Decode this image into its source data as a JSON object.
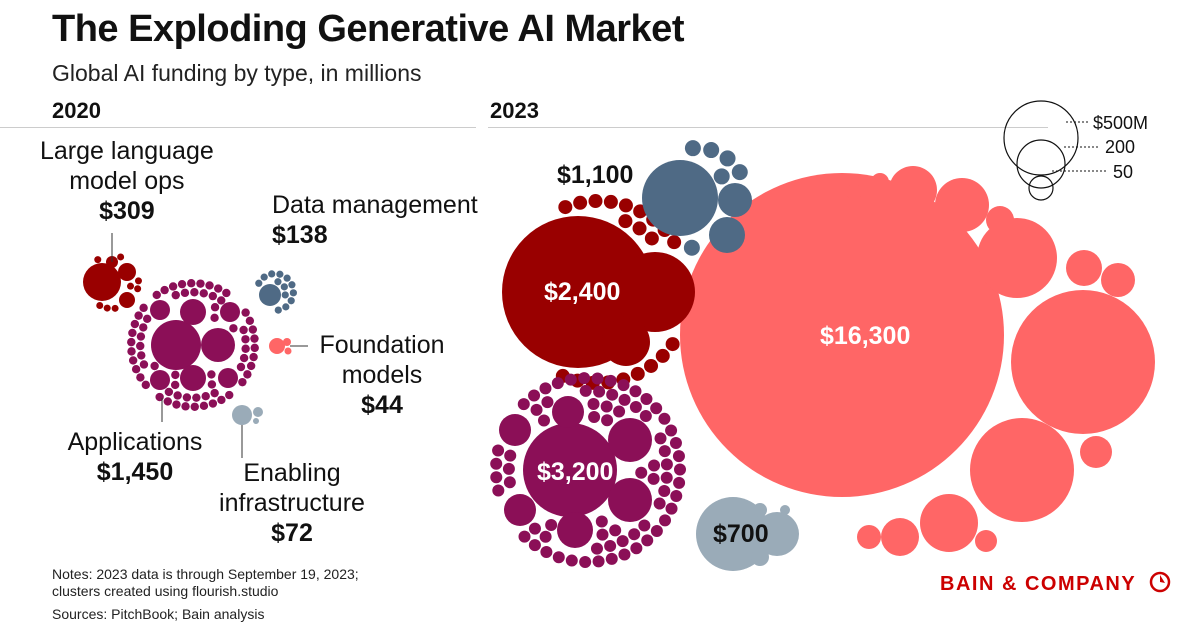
{
  "title": "The Exploding Generative AI Market",
  "subtitle": "Global AI funding by type, in millions",
  "notes": [
    "Notes: 2023 data is through September 19, 2023;",
    "clusters created using flourish.studio"
  ],
  "sources": "Sources: PitchBook; Bain analysis",
  "logo": "BAIN & COMPANY",
  "chart_data": {
    "type": "bubble-cluster",
    "unit": "millions USD",
    "panels": [
      "2020",
      "2023"
    ],
    "legend": {
      "title": "",
      "sizes": [
        "$500M",
        "200",
        "50"
      ]
    },
    "series": [
      {
        "name": "Large language model ops",
        "label_lines": [
          "Large language",
          "model ops"
        ],
        "color": "#990000",
        "values": {
          "2020": 309,
          "2023": 2400
        },
        "labels": {
          "2020": "$309",
          "2023": "$2,400"
        }
      },
      {
        "name": "Data management",
        "label_lines": [
          "Data management"
        ],
        "color": "#4f6a85",
        "values": {
          "2020": 138,
          "2023": 1100
        },
        "labels": {
          "2020": "$138",
          "2023": "$1,100"
        }
      },
      {
        "name": "Foundation models",
        "label_lines": [
          "Foundation",
          "models"
        ],
        "color": "#ff6666",
        "values": {
          "2020": 44,
          "2023": 16300
        },
        "labels": {
          "2020": "$44",
          "2023": "$16,300"
        }
      },
      {
        "name": "Applications",
        "label_lines": [
          "Applications"
        ],
        "color": "#8b0f57",
        "values": {
          "2020": 1450,
          "2023": 3200
        },
        "labels": {
          "2020": "$1,450",
          "2023": "$3,200"
        }
      },
      {
        "name": "Enabling infrastructure",
        "label_lines": [
          "Enabling",
          "infrastructure"
        ],
        "color": "#9aabb8",
        "values": {
          "2020": 72,
          "2023": 700
        },
        "labels": {
          "2020": "$72",
          "2023": "$700"
        }
      }
    ]
  }
}
